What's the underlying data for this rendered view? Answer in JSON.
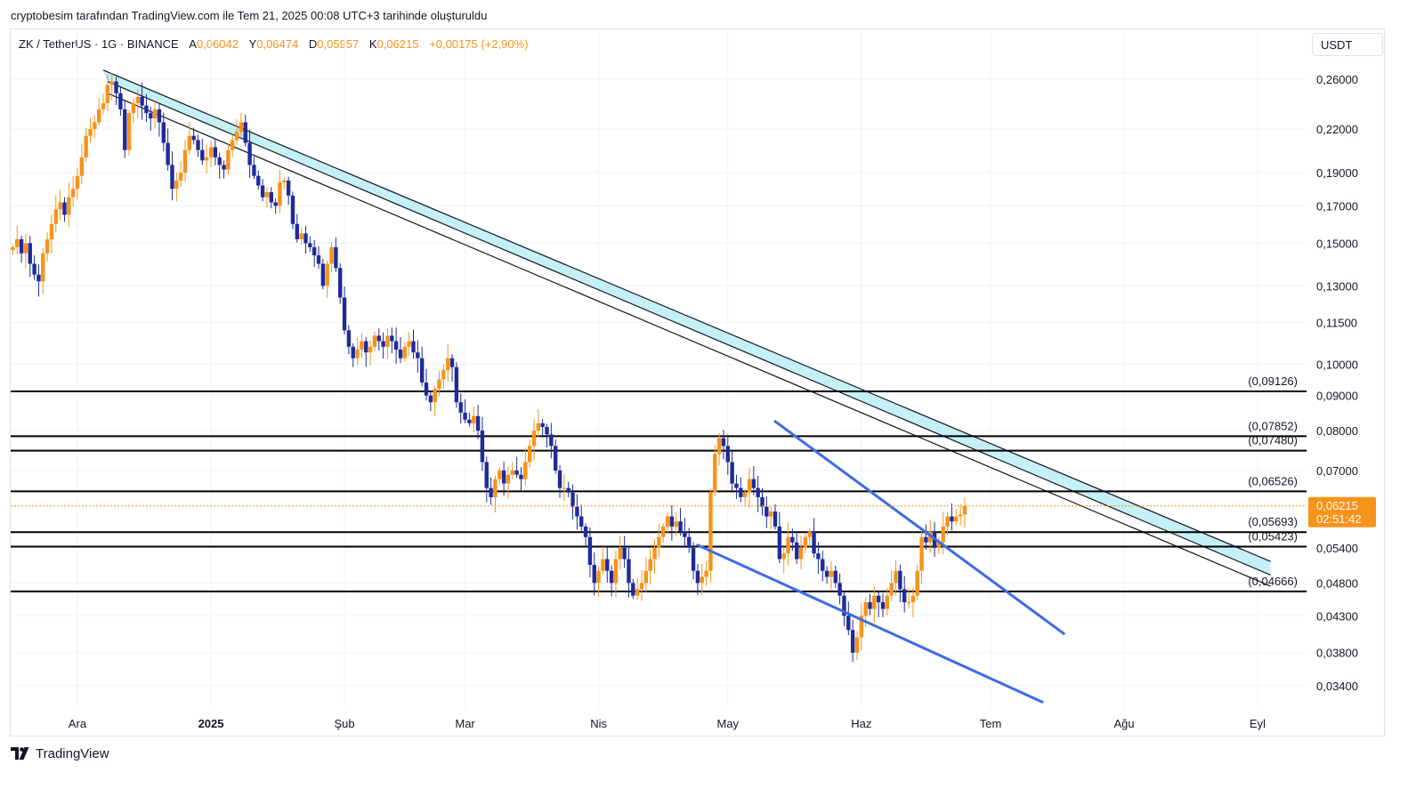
{
  "header": {
    "credit": "cryptobesim tarafından TradingView.com ile Tem 21, 2025 00:08 UTC+3 tarihinde oluşturuldu"
  },
  "legend": {
    "symbol": "ZK / TetherUS · 1G · BINANCE",
    "open_label": "A",
    "open": "0,06042",
    "high_label": "Y",
    "high": "0,06474",
    "low_label": "D",
    "low": "0,05957",
    "close_label": "K",
    "close": "0,06215",
    "change": "+0,00175 (+2,90%)"
  },
  "currency": "USDT",
  "brand": {
    "name": "TradingView",
    "icon": "tradingview-logo-icon"
  },
  "price_tag": {
    "price": "0,06215",
    "countdown": "02:51:42"
  },
  "colors": {
    "up": "#f7931a",
    "down": "#1e2b99",
    "channel_fill": "#b2ebf2",
    "wedge": "#3d6be8",
    "level": "#000000",
    "grid": "#f0f3fa",
    "price_tag": "#f7931a"
  },
  "chart_data": {
    "type": "candlestick",
    "scale": "log",
    "ylim": [
      0.0318,
      0.289
    ],
    "y_ticks": [
      0.26,
      0.22,
      0.19,
      0.17,
      0.15,
      0.13,
      0.115,
      0.1,
      0.09,
      0.08,
      0.07,
      0.054,
      0.048,
      0.043,
      0.038,
      0.034
    ],
    "y_tick_labels": [
      "0,26000",
      "0,22000",
      "0,19000",
      "0,17000",
      "0,15000",
      "0,13000",
      "0,11500",
      "0,10000",
      "0,09000",
      "0,08000",
      "0,07000",
      "0,05400",
      "0,04800",
      "0,04300",
      "0,03800",
      "0,03400"
    ],
    "x_ticks": [
      {
        "label": "Ara",
        "date": "2024-12-01"
      },
      {
        "label": "2025",
        "date": "2025-01-01",
        "bold": true
      },
      {
        "label": "Şub",
        "date": "2025-02-01"
      },
      {
        "label": "Mar",
        "date": "2025-03-01"
      },
      {
        "label": "Nis",
        "date": "2025-04-01"
      },
      {
        "label": "May",
        "date": "2025-05-01"
      },
      {
        "label": "Haz",
        "date": "2025-06-01"
      },
      {
        "label": "Tem",
        "date": "2025-07-01"
      },
      {
        "label": "Ağu",
        "date": "2025-08-01"
      },
      {
        "label": "Eyl",
        "date": "2025-09-01"
      }
    ],
    "first_date": "2024-11-16",
    "last_date": "2025-07-20",
    "candles_note": "daily closes, approximate",
    "closes": [
      0.148,
      0.152,
      0.145,
      0.15,
      0.14,
      0.135,
      0.132,
      0.145,
      0.152,
      0.16,
      0.168,
      0.172,
      0.165,
      0.175,
      0.18,
      0.188,
      0.2,
      0.215,
      0.22,
      0.225,
      0.235,
      0.24,
      0.255,
      0.258,
      0.248,
      0.235,
      0.205,
      0.232,
      0.24,
      0.245,
      0.238,
      0.232,
      0.228,
      0.235,
      0.225,
      0.21,
      0.195,
      0.18,
      0.185,
      0.19,
      0.205,
      0.215,
      0.212,
      0.205,
      0.198,
      0.2,
      0.207,
      0.2,
      0.195,
      0.192,
      0.205,
      0.212,
      0.218,
      0.225,
      0.21,
      0.195,
      0.188,
      0.182,
      0.175,
      0.178,
      0.172,
      0.17,
      0.184,
      0.185,
      0.176,
      0.16,
      0.152,
      0.155,
      0.15,
      0.148,
      0.144,
      0.14,
      0.13,
      0.14,
      0.148,
      0.138,
      0.125,
      0.112,
      0.106,
      0.102,
      0.105,
      0.108,
      0.104,
      0.106,
      0.11,
      0.108,
      0.106,
      0.11,
      0.108,
      0.105,
      0.102,
      0.106,
      0.108,
      0.104,
      0.102,
      0.094,
      0.09,
      0.088,
      0.092,
      0.095,
      0.098,
      0.102,
      0.099,
      0.088,
      0.085,
      0.083,
      0.082,
      0.084,
      0.08,
      0.072,
      0.066,
      0.064,
      0.068,
      0.07,
      0.067,
      0.069,
      0.07,
      0.069,
      0.068,
      0.072,
      0.076,
      0.08,
      0.082,
      0.081,
      0.079,
      0.076,
      0.07,
      0.066,
      0.066,
      0.065,
      0.062,
      0.06,
      0.058,
      0.056,
      0.051,
      0.048,
      0.05,
      0.052,
      0.05,
      0.048,
      0.052,
      0.054,
      0.052,
      0.048,
      0.046,
      0.047,
      0.048,
      0.05,
      0.052,
      0.054,
      0.056,
      0.058,
      0.06,
      0.058,
      0.059,
      0.057,
      0.056,
      0.054,
      0.05,
      0.048,
      0.049,
      0.05,
      0.065,
      0.074,
      0.078,
      0.076,
      0.072,
      0.067,
      0.066,
      0.064,
      0.065,
      0.068,
      0.066,
      0.064,
      0.062,
      0.06,
      0.061,
      0.058,
      0.052,
      0.053,
      0.056,
      0.055,
      0.052,
      0.054,
      0.056,
      0.057,
      0.053,
      0.052,
      0.05,
      0.049,
      0.05,
      0.048,
      0.046,
      0.043,
      0.041,
      0.038,
      0.04,
      0.043,
      0.045,
      0.044,
      0.046,
      0.045,
      0.044,
      0.046,
      0.048,
      0.05,
      0.047,
      0.045,
      0.045,
      0.046,
      0.05,
      0.056,
      0.055,
      0.057,
      0.054,
      0.055,
      0.058,
      0.06,
      0.059,
      0.06,
      0.0604,
      0.06215
    ],
    "horizontal_levels": [
      {
        "price": 0.09126,
        "label": "(0,09126)"
      },
      {
        "price": 0.07852,
        "label": "(0,07852)"
      },
      {
        "price": 0.0748,
        "label": "(0,07480)"
      },
      {
        "price": 0.06526,
        "label": "(0,06526)"
      },
      {
        "price": 0.05693,
        "label": "(0,05693)"
      },
      {
        "price": 0.05423,
        "label": "(0,05423)"
      },
      {
        "price": 0.04666,
        "label": "(0,04666)"
      }
    ],
    "descending_channel": {
      "upper_start": {
        "date": "2024-12-07",
        "price": 0.268
      },
      "upper_end": {
        "date": "2025-09-04",
        "price": 0.0516
      },
      "middle_start": {
        "date": "2024-12-08",
        "price": 0.258
      },
      "middle_end": {
        "date": "2025-09-04",
        "price": 0.0493
      },
      "lower_start": {
        "date": "2024-12-08",
        "price": 0.248
      },
      "lower_end": {
        "date": "2025-09-04",
        "price": 0.0475
      }
    },
    "falling_wedge": {
      "upper_start": {
        "date": "2025-05-12",
        "price": 0.0825
      },
      "upper_end": {
        "date": "2025-07-18",
        "price": 0.0405
      },
      "lower_start": {
        "date": "2025-04-24",
        "price": 0.0545
      },
      "lower_end": {
        "date": "2025-07-13",
        "price": 0.0322
      }
    },
    "current_price": 0.06215
  }
}
